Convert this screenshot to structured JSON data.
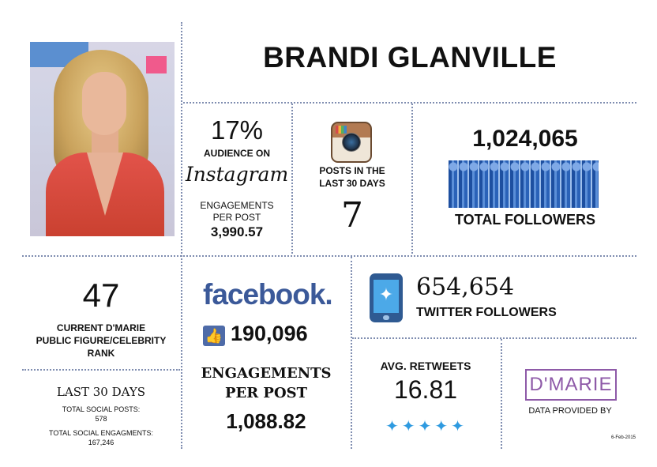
{
  "name": "BRANDI GLANVILLE",
  "instagram": {
    "audience_pct": "17%",
    "audience_label": "AUDIENCE ON",
    "brand": "Instagram",
    "engagements_label_1": "ENGAGEMENTS",
    "engagements_label_2": "PER POST",
    "engagements_value": "3,990.57",
    "posts_label_1": "POSTS IN THE",
    "posts_label_2": "LAST 30 DAYS",
    "posts_value": "7"
  },
  "followers": {
    "total_value": "1,024,065",
    "total_label": "TOTAL FOLLOWERS"
  },
  "rank": {
    "value": "47",
    "label_1": "CURRENT D'MARIE",
    "label_2": "PUBLIC FIGURE/CELEBRITY",
    "label_3": "RANK"
  },
  "last30": {
    "title": "LAST 30 DAYS",
    "posts_label": "TOTAL SOCIAL POSTS:",
    "posts_value": "578",
    "engagements_label": "TOTAL SOCIAL ENGAGMENTS:",
    "engagements_value": "167,246"
  },
  "facebook": {
    "brand": "facebook.",
    "likes_value": "190,096",
    "engagements_label_1": "ENGAGEMENTS",
    "engagements_label_2": "PER POST",
    "engagements_value": "1,088.82"
  },
  "twitter": {
    "followers_value": "654,654",
    "followers_label": "TWITTER FOLLOWERS",
    "retweets_label": "AVG. RETWEETS",
    "retweets_value": "16.81"
  },
  "provider": {
    "logo": "D'MARIE",
    "label": "DATA PROVIDED BY",
    "date": "6-Feb-2015"
  },
  "colors": {
    "divider": "#7f8db0",
    "facebook": "#3b5999",
    "twitter": "#2e9ae0",
    "brand_purple": "#8e5aa8"
  },
  "icons": [
    "instagram-camera-icon",
    "followers-crowd-icon",
    "twitter-phone-icon",
    "thumbs-up-icon",
    "twitter-bird-icon"
  ]
}
